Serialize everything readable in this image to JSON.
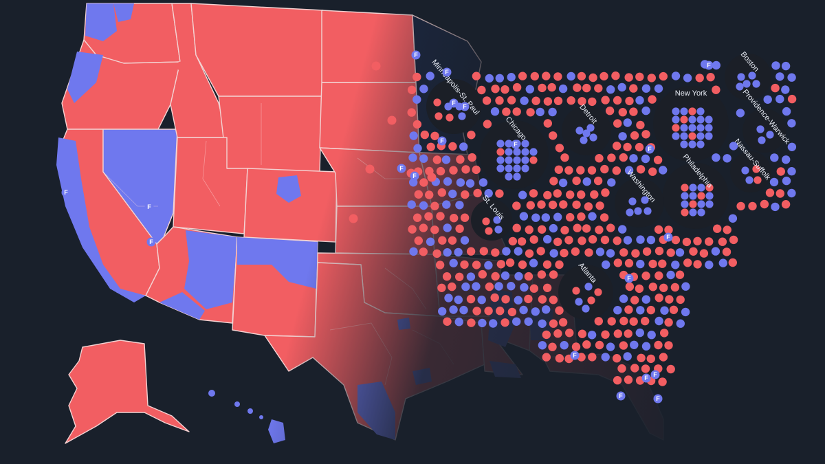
{
  "colors": {
    "background": "#19202b",
    "republican": "#f25e62",
    "democrat": "#6f78ee",
    "cluster_bg": "#1b1f27",
    "state_border": "#f3d2d2"
  },
  "legend_marker": "F",
  "cities": [
    {
      "id": "boston",
      "label": "Boston"
    },
    {
      "id": "new-york",
      "label": "New York"
    },
    {
      "id": "providence-warwick",
      "label": "Providence-Warwick"
    },
    {
      "id": "nassau-suffolk",
      "label": "Nassau-Suffolk"
    },
    {
      "id": "philadelphia",
      "label": "Philadelphia"
    },
    {
      "id": "washington",
      "label": "Washington"
    },
    {
      "id": "detroit",
      "label": "Detroit"
    },
    {
      "id": "chicago",
      "label": "Chicago"
    },
    {
      "id": "minneapolis-st-paul",
      "label": "Minneapolis-St. Paul"
    },
    {
      "id": "st-louis",
      "label": "St. Louis"
    },
    {
      "id": "atlanta",
      "label": "Atlanta"
    }
  ]
}
